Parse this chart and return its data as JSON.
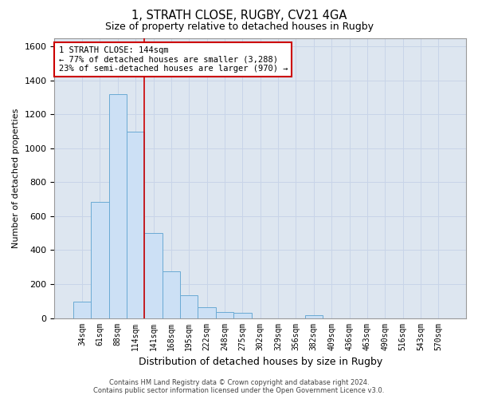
{
  "title1": "1, STRATH CLOSE, RUGBY, CV21 4GA",
  "title2": "Size of property relative to detached houses in Rugby",
  "xlabel": "Distribution of detached houses by size in Rugby",
  "ylabel": "Number of detached properties",
  "categories": [
    "34sqm",
    "61sqm",
    "88sqm",
    "114sqm",
    "141sqm",
    "168sqm",
    "195sqm",
    "222sqm",
    "248sqm",
    "275sqm",
    "302sqm",
    "329sqm",
    "356sqm",
    "382sqm",
    "409sqm",
    "436sqm",
    "463sqm",
    "490sqm",
    "516sqm",
    "543sqm",
    "570sqm"
  ],
  "values": [
    95,
    685,
    1320,
    1100,
    500,
    275,
    135,
    65,
    35,
    30,
    0,
    0,
    0,
    15,
    0,
    0,
    0,
    0,
    0,
    0,
    0
  ],
  "bar_color": "#cce0f5",
  "bar_edge_color": "#6aaad4",
  "vline_color": "#cc0000",
  "vline_pos": 3.5,
  "annotation_line1": "1 STRATH CLOSE: 144sqm",
  "annotation_line2": "← 77% of detached houses are smaller (3,288)",
  "annotation_line3": "23% of semi-detached houses are larger (970) →",
  "annotation_box_color": "#cc0000",
  "ylim": [
    0,
    1650
  ],
  "yticks": [
    0,
    200,
    400,
    600,
    800,
    1000,
    1200,
    1400,
    1600
  ],
  "grid_color": "#c8d4e8",
  "background_color": "#dde6f0",
  "footer1": "Contains HM Land Registry data © Crown copyright and database right 2024.",
  "footer2": "Contains public sector information licensed under the Open Government Licence v3.0."
}
